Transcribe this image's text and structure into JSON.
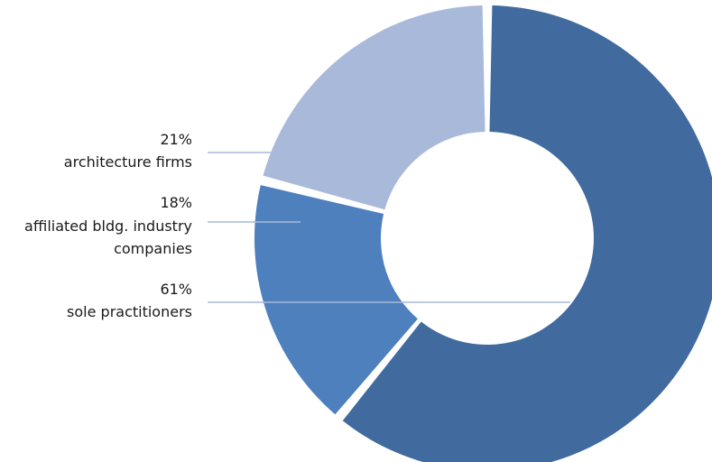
{
  "chart_data": {
    "type": "pie",
    "variant": "donut",
    "title": "",
    "slices": [
      {
        "key": "sole",
        "percent_label": "61%",
        "label_lines": [
          "sole practitioners"
        ],
        "value": 61,
        "color": "#416a9e"
      },
      {
        "key": "affiliated",
        "percent_label": "18%",
        "label_lines": [
          "affiliated bldg. industry",
          "companies"
        ],
        "value": 18,
        "color": "#4e80bd"
      },
      {
        "key": "architecture",
        "percent_label": "21%",
        "label_lines": [
          "architecture firms"
        ],
        "value": 21,
        "color": "#a9b9d9"
      }
    ],
    "leader_color": "#a9b9d9",
    "legend": "none",
    "grid": false
  }
}
